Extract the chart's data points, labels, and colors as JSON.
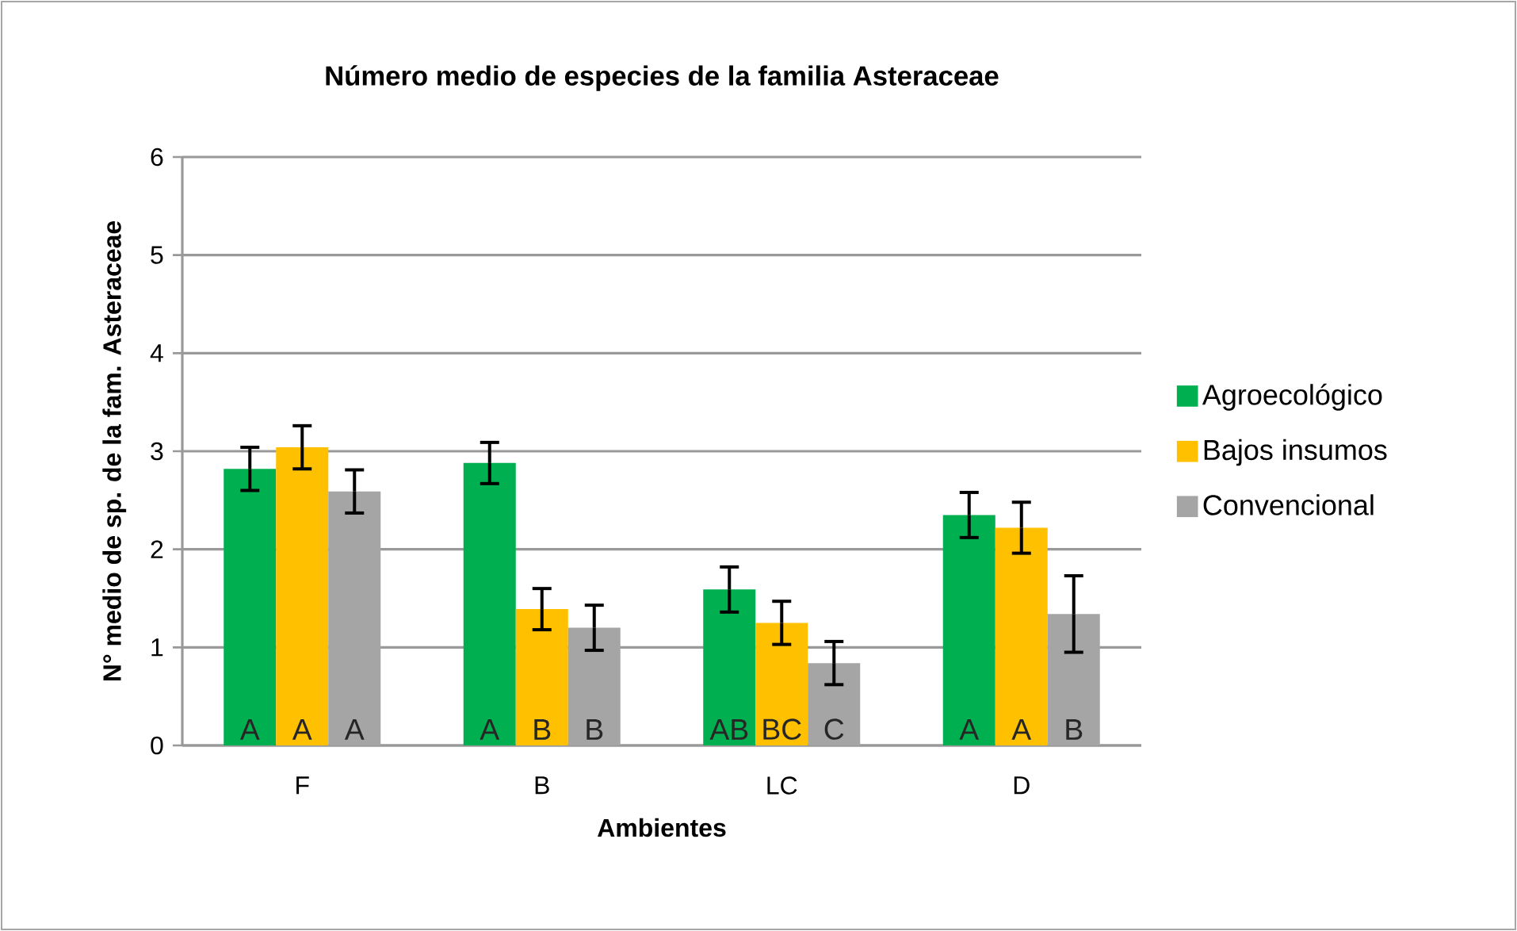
{
  "chart_data": {
    "type": "bar",
    "title": "Número medio de especies de la familia Asteraceae",
    "xlabel": "Ambientes",
    "ylabel": "N° medio de sp. de la fam. Asteraceae",
    "categories": [
      "F",
      "B",
      "LC",
      "D"
    ],
    "series": [
      {
        "name": "Agroecológico",
        "color": "#00b050",
        "values": [
          2.82,
          2.88,
          1.59,
          2.35
        ],
        "errors": [
          0.22,
          0.21,
          0.23,
          0.23
        ],
        "value_labels": [
          "A",
          "A",
          "AB",
          "A"
        ]
      },
      {
        "name": "Bajos insumos",
        "color": "#ffc000",
        "values": [
          3.04,
          1.39,
          1.25,
          2.22
        ],
        "errors": [
          0.22,
          0.21,
          0.22,
          0.26
        ],
        "value_labels": [
          "A",
          "B",
          "BC",
          "A"
        ]
      },
      {
        "name": "Convencional",
        "color": "#a5a5a5",
        "values": [
          2.59,
          1.2,
          0.84,
          1.34
        ],
        "errors": [
          0.22,
          0.23,
          0.22,
          0.39
        ],
        "value_labels": [
          "A",
          "B",
          "C",
          "B"
        ]
      }
    ],
    "ylim": [
      0,
      6
    ],
    "yticks": [
      0,
      1,
      2,
      3,
      4,
      5,
      6
    ],
    "grid": "y",
    "legend": "right"
  }
}
